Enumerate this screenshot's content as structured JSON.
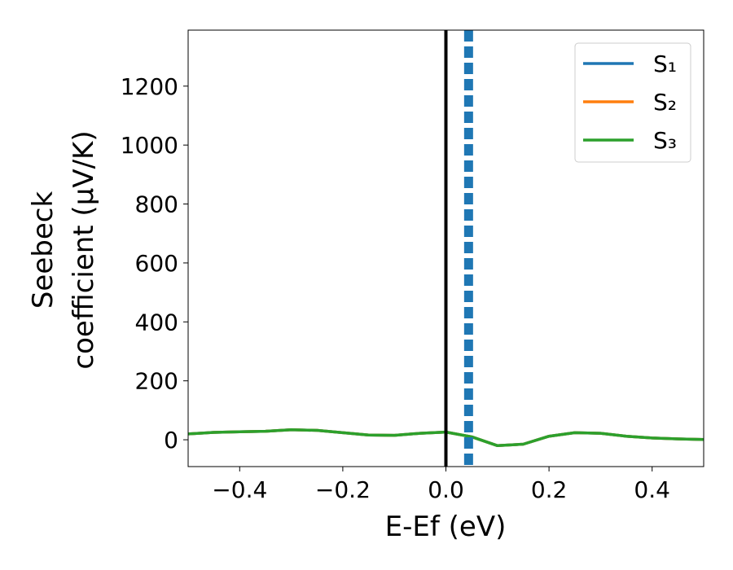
{
  "chart_data": {
    "type": "line",
    "xlabel": "E-Ef (eV)",
    "ylabel": [
      "Seebeck",
      "coefficient  (μV/K)"
    ],
    "x": [
      -0.5,
      -0.45,
      -0.4,
      -0.35,
      -0.3,
      -0.25,
      -0.2,
      -0.15,
      -0.1,
      -0.05,
      0,
      0.05,
      0.1,
      0.15,
      0.2,
      0.25,
      0.3,
      0.35,
      0.4,
      0.45,
      0.5
    ],
    "series": [
      {
        "name": "S₁",
        "color": "#1f77b4",
        "values": [
          20,
          25,
          27,
          29,
          34,
          32,
          24,
          16,
          15,
          22,
          26,
          10,
          -20,
          -15,
          12,
          24,
          22,
          12,
          6,
          3,
          1
        ]
      },
      {
        "name": "S₂",
        "color": "#ff7f0e",
        "values": [
          20,
          25,
          27,
          29,
          34,
          32,
          24,
          16,
          15,
          22,
          26,
          10,
          -20,
          -15,
          12,
          24,
          22,
          12,
          6,
          3,
          1
        ]
      },
      {
        "name": "S₃",
        "color": "#2ca02c",
        "values": [
          20,
          25,
          27,
          29,
          34,
          32,
          24,
          16,
          15,
          22,
          26,
          10,
          -20,
          -15,
          12,
          24,
          22,
          12,
          6,
          3,
          1
        ]
      }
    ],
    "vlines": [
      {
        "x": 0,
        "color": "#000000",
        "style": "solid"
      },
      {
        "x": 0.044,
        "color": "#1f77b4",
        "style": "dashed"
      }
    ],
    "xlim": [
      -0.5,
      0.5
    ],
    "ylim": [
      -91,
      1390
    ],
    "xticks": [
      {
        "value": -0.4,
        "label": "−0.4"
      },
      {
        "value": -0.2,
        "label": "−0.2"
      },
      {
        "value": 0,
        "label": "0.0"
      },
      0.2,
      0.4
    ],
    "yticks": [
      0,
      200,
      400,
      600,
      800,
      1000,
      1200
    ],
    "legend": "upper right",
    "grid": false
  }
}
